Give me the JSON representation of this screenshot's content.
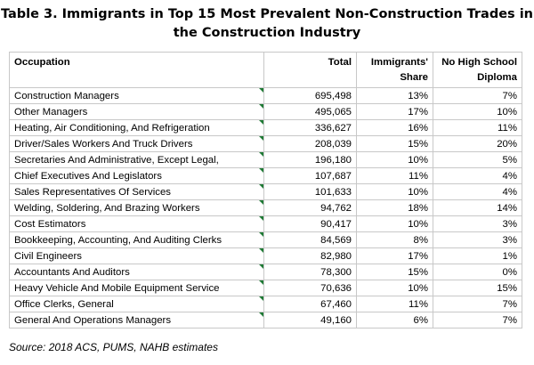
{
  "title_lines": [
    "Table 3. Immigrants in Top 15 Most Prevalent Non-Construction Trades in",
    "the Construction Industry"
  ],
  "headers": {
    "occupation": "Occupation",
    "total": "Total",
    "share_line1": "Immigrants'",
    "share_line2": "Share",
    "diploma_line1": "No High School",
    "diploma_line2": "Diploma"
  },
  "rows": [
    {
      "occupation": "Construction Managers",
      "total": "695,498",
      "share": "13%",
      "no_diploma": "7%"
    },
    {
      "occupation": "Other Managers",
      "total": "495,065",
      "share": "17%",
      "no_diploma": "10%"
    },
    {
      "occupation": "Heating, Air Conditioning, And Refrigeration",
      "total": "336,627",
      "share": "16%",
      "no_diploma": "11%"
    },
    {
      "occupation": "Driver/Sales Workers And Truck Drivers",
      "total": "208,039",
      "share": "15%",
      "no_diploma": "20%"
    },
    {
      "occupation": "Secretaries And Administrative, Except Legal,",
      "total": "196,180",
      "share": "10%",
      "no_diploma": "5%"
    },
    {
      "occupation": "Chief Executives And Legislators",
      "total": "107,687",
      "share": "11%",
      "no_diploma": "4%"
    },
    {
      "occupation": "Sales Representatives Of Services",
      "total": "101,633",
      "share": "10%",
      "no_diploma": "4%"
    },
    {
      "occupation": "Welding, Soldering, And Brazing Workers",
      "total": "94,762",
      "share": "18%",
      "no_diploma": "14%"
    },
    {
      "occupation": "Cost Estimators",
      "total": "90,417",
      "share": "10%",
      "no_diploma": "3%"
    },
    {
      "occupation": "Bookkeeping, Accounting, And Auditing Clerks",
      "total": "84,569",
      "share": "8%",
      "no_diploma": "3%"
    },
    {
      "occupation": "Civil Engineers",
      "total": "82,980",
      "share": "17%",
      "no_diploma": "1%"
    },
    {
      "occupation": "Accountants And Auditors",
      "total": "78,300",
      "share": "15%",
      "no_diploma": "0%"
    },
    {
      "occupation": "Heavy Vehicle And Mobile Equipment Service",
      "total": "70,636",
      "share": "10%",
      "no_diploma": "15%"
    },
    {
      "occupation": "Office Clerks, General",
      "total": "67,460",
      "share": "11%",
      "no_diploma": "7%"
    },
    {
      "occupation": "General And Operations Managers",
      "total": "49,160",
      "share": "6%",
      "no_diploma": "7%"
    }
  ],
  "source": "Source: 2018 ACS, PUMS, NAHB estimates",
  "colors": {
    "cell_border": "#c8c8c8",
    "comment_marker": "#1f7a35"
  }
}
